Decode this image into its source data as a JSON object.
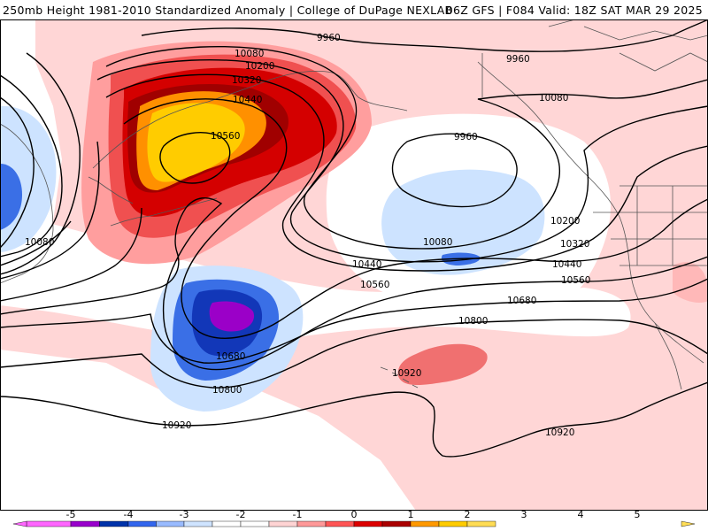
{
  "header": {
    "left": "250mb Height 1981-2010 Standardized Anomaly | College of DuPage NEXLAB",
    "right": "06Z GFS | F084 Valid: 18Z SAT MAR 29 2025"
  },
  "contour_labels": {
    "c9960_a": "9960",
    "c9960_b": "9960",
    "c9960_c": "9960",
    "c10080_a": "10080",
    "c10080_b": "10080",
    "c10080_c": "10080",
    "c10080_d": "10080",
    "c10200_a": "10200",
    "c10200_b": "10200",
    "c10320_a": "10320",
    "c10320_b": "10320",
    "c10440_a": "10440",
    "c10440_b": "10440",
    "c10440_c": "10440",
    "c10560_a": "10560",
    "c10560_b": "10560",
    "c10560_c": "10560",
    "c10680_a": "10680",
    "c10680_b": "10680",
    "c10800_a": "10800",
    "c10800_b": "10800",
    "c10920_a": "10920",
    "c10920_b": "10920",
    "c10920_c": "10920"
  },
  "colorbar": {
    "labels": [
      "-5",
      "-4",
      "-3",
      "-2",
      "-1",
      "0",
      "1",
      "2",
      "3",
      "4",
      "5"
    ],
    "colors": [
      "#ff66ff",
      "#9900cc",
      "#0033aa",
      "#3366ee",
      "#99bbff",
      "#cfe4ff",
      "#ffffff",
      "#ffffff",
      "#ffd4d4",
      "#ff9999",
      "#ff5555",
      "#dd0000",
      "#aa0000",
      "#ff9900",
      "#ffcc00",
      "#ffdd55"
    ]
  }
}
